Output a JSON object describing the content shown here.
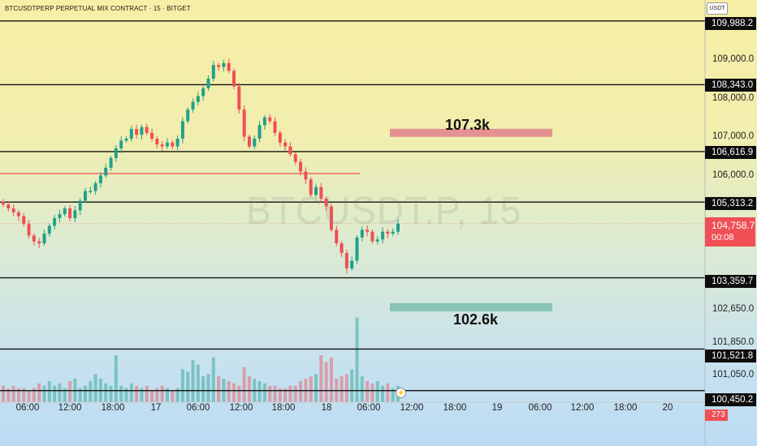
{
  "header": {
    "symbol_title": "BTCUSDTPERP PERPETUAL MIX CONTRACT · 15 · BITGET",
    "currency": "USDT"
  },
  "watermark": "BTCUSDT.P, 15",
  "price_axis": {
    "ticks": [
      "109,000.0",
      "108,000.0",
      "107,000.0",
      "106,000.0",
      "102,650.0",
      "101,850.0",
      "101,050.0"
    ],
    "level_badges": [
      "109,988.2",
      "108,343.0",
      "106,616.9",
      "105,313.2",
      "103,359.7",
      "101,521.8",
      "100,450.2"
    ],
    "current_price": "104,758.7",
    "countdown": "00:08",
    "volume_value": "273"
  },
  "time_axis": {
    "ticks": [
      "06:00",
      "12:00",
      "18:00",
      "17",
      "06:00",
      "12:00",
      "18:00",
      "18",
      "06:00",
      "12:00",
      "18:00",
      "19",
      "06:00",
      "12:00",
      "18:00",
      "20"
    ]
  },
  "zones": [
    {
      "label": "107.3k",
      "price": 107100,
      "color": "#e3868f"
    },
    {
      "label": "102.6k",
      "price": 102600,
      "color": "#7fbfae"
    }
  ],
  "colors": {
    "up": "#22a08a",
    "down": "#ef4f55",
    "level_line": "#111111",
    "red_line": "#ef4f55"
  },
  "chart_data": {
    "type": "candlestick",
    "timeframe": "15",
    "horizontal_levels": [
      109988.2,
      108343.0,
      106616.9,
      105313.2,
      103359.7,
      101521.8,
      100450.2
    ],
    "red_line_level": 106050,
    "closes": [
      105250,
      105150,
      105050,
      104950,
      104750,
      104450,
      104300,
      104250,
      104500,
      104700,
      104900,
      105000,
      105150,
      104900,
      105100,
      105350,
      105600,
      105600,
      105800,
      106000,
      106200,
      106450,
      106700,
      106900,
      106950,
      107200,
      107050,
      107250,
      107100,
      106950,
      106800,
      106750,
      106850,
      106750,
      106950,
      107400,
      107700,
      107900,
      108050,
      108250,
      108500,
      108850,
      108800,
      108900,
      108700,
      108300,
      107700,
      107000,
      106750,
      106950,
      107300,
      107500,
      107400,
      107100,
      106850,
      106750,
      106550,
      106350,
      106100,
      105900,
      105500,
      105700,
      105400,
      105200,
      104600,
      104250,
      104000,
      103600,
      103800,
      104400,
      104600,
      104550,
      104300,
      104350,
      104550,
      104500,
      104550,
      104758.7
    ],
    "volumes": [
      35,
      30,
      35,
      30,
      30,
      25,
      30,
      40,
      35,
      45,
      35,
      40,
      30,
      45,
      50,
      30,
      35,
      45,
      60,
      50,
      40,
      35,
      100,
      35,
      30,
      40,
      35,
      30,
      35,
      25,
      30,
      35,
      30,
      25,
      30,
      70,
      65,
      90,
      80,
      55,
      60,
      95,
      55,
      50,
      45,
      40,
      35,
      75,
      55,
      50,
      45,
      40,
      35,
      35,
      30,
      30,
      35,
      35,
      45,
      50,
      55,
      60,
      100,
      85,
      95,
      50,
      55,
      60,
      70,
      180,
      55,
      45,
      40,
      45,
      35,
      40,
      30,
      35
    ]
  }
}
